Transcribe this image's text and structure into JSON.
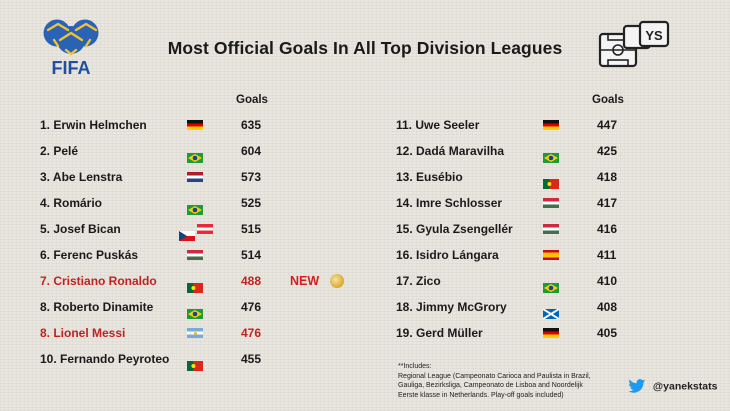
{
  "brand": {
    "logo_text": "FIFA"
  },
  "title": "Most Official Goals In All Top Division Leagues",
  "goals_header": "Goals",
  "left_rows": [
    {
      "name": "1. Erwin Helmchen",
      "goals": "635",
      "flags": [
        "germany"
      ]
    },
    {
      "name": "2. Pelé",
      "goals": "604",
      "flags": [
        "brazil"
      ]
    },
    {
      "name": "3. Abe Lenstra",
      "goals": "573",
      "flags": [
        "netherlands"
      ]
    },
    {
      "name": "4. Romário",
      "goals": "525",
      "flags": [
        "brazil"
      ]
    },
    {
      "name": "5. Josef Bican",
      "goals": "515",
      "flags": [
        "czech",
        "austria"
      ]
    },
    {
      "name": "6. Ferenc Puskás",
      "goals": "514",
      "flags": [
        "hungary"
      ]
    },
    {
      "name": "7. Cristiano Ronaldo",
      "goals": "488",
      "flags": [
        "portugal"
      ],
      "highlight": true,
      "badge": "NEW"
    },
    {
      "name": "8. Roberto Dinamite",
      "goals": "476",
      "flags": [
        "brazil"
      ]
    },
    {
      "name": "8. Lionel Messi",
      "goals": "476",
      "flags": [
        "argentina"
      ],
      "highlight": true
    },
    {
      "name": "10. Fernando Peyroteo",
      "goals": "455",
      "flags": [
        "portugal"
      ]
    }
  ],
  "right_rows": [
    {
      "name": "11. Uwe Seeler",
      "goals": "447",
      "flags": [
        "germany"
      ]
    },
    {
      "name": "12. Dadá Maravilha",
      "goals": "425",
      "flags": [
        "brazil"
      ]
    },
    {
      "name": "13. Eusébio",
      "goals": "418",
      "flags": [
        "portugal"
      ]
    },
    {
      "name": "14. Imre Schlosser",
      "goals": "417",
      "flags": [
        "hungary"
      ]
    },
    {
      "name": "15. Gyula Zsengellér",
      "goals": "416",
      "flags": [
        "hungary"
      ]
    },
    {
      "name": "16. Isidro Lángara",
      "goals": "411",
      "flags": [
        "spain"
      ]
    },
    {
      "name": "17. Zico",
      "goals": "410",
      "flags": [
        "brazil"
      ]
    },
    {
      "name": "18. Jimmy McGrory",
      "goals": "408",
      "flags": [
        "scotland"
      ]
    },
    {
      "name": "19. Gerd Müller",
      "goals": "405",
      "flags": [
        "germany"
      ]
    }
  ],
  "notes": [
    "**Includes:",
    "Regional League (Campeonato Carioca and Paulista in Brazil,",
    "Gauliga, Bezirksliga, Campeonato de Lisboa and Noordelijk",
    "Eerste klasse in Netherlands. Play-off goals included)"
  ],
  "twitter_handle": "@yanekstats",
  "colors": {
    "highlight": "#c0221f",
    "new_badge": "#d31f1f"
  }
}
